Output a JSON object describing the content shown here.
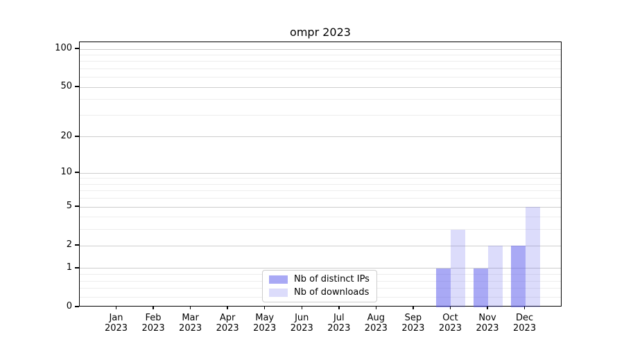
{
  "chart_data": {
    "type": "bar",
    "title": "ompr 2023",
    "categories": [
      "Jan",
      "Feb",
      "Mar",
      "Apr",
      "May",
      "Jun",
      "Jul",
      "Aug",
      "Sep",
      "Oct",
      "Nov",
      "Dec"
    ],
    "category_year": "2023",
    "series": [
      {
        "name": "Nb of distinct IPs",
        "color": "#5a5aeb",
        "alpha": 0.52,
        "color_on_white": "#a9a9f6",
        "values": [
          0,
          0,
          0,
          0,
          0,
          0,
          0,
          0,
          0,
          1,
          1,
          2
        ]
      },
      {
        "name": "Nb of downloads",
        "color": "#5a5aeb",
        "alpha": 0.21,
        "color_on_white": "#dcdcf9",
        "values": [
          0,
          0,
          0,
          0,
          0,
          0,
          0,
          0,
          0,
          3,
          2,
          5
        ]
      }
    ],
    "xlabel": "",
    "ylabel": "",
    "yscale": "log1p",
    "ylim": [
      0,
      113
    ],
    "yticks_major": [
      0,
      1,
      2,
      5,
      10,
      20,
      50,
      100
    ],
    "yticks_minor": [
      0.2,
      0.4,
      0.6,
      0.8,
      3,
      4,
      6,
      7,
      8,
      9,
      30,
      40,
      60,
      70,
      80,
      90
    ],
    "grid": "on",
    "legend_position": "lower center"
  },
  "colors": {
    "major_grid": "#cdcdcd",
    "minor_grid": "#ededed",
    "axis": "#000000",
    "background": "#ffffff",
    "legend_border": "#cccccc"
  }
}
